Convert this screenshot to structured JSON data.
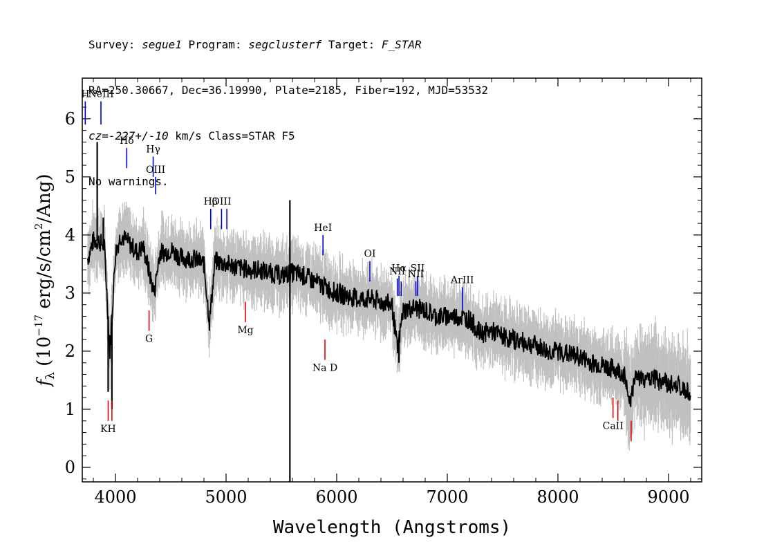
{
  "header": {
    "line1": {
      "survey_label": "Survey: ",
      "survey": "segue1",
      "program_label": " Program: ",
      "program": "segclusterf",
      "target_label": " Target: ",
      "target": "F_STAR"
    },
    "line2": "RA=250.30667, Dec=36.19990, Plate=2185, Fiber=192, MJD=53532",
    "line3": {
      "cz": "cz=-227+/-10",
      "rest": " km/s Class=STAR F5"
    },
    "line4": "No warnings."
  },
  "colors": {
    "flux": "#000000",
    "error_band": "#c0c0c0",
    "emission": "#0000cc",
    "absorption": "#dd0000"
  },
  "chart_data": {
    "type": "line",
    "xlabel": "Wavelength (Angstroms)",
    "ylabel_parts": {
      "f": "f",
      "sub": "λ",
      "pre": " (10",
      "exp1": "−17",
      "mid": " erg/s/cm",
      "exp2": "2",
      "post": "/Ang)"
    },
    "xlim": [
      3700,
      9300
    ],
    "ylim": [
      -0.25,
      6.7
    ],
    "x_ticks": [
      "4000",
      "5000",
      "6000",
      "7000",
      "8000",
      "9000"
    ],
    "x_tick_values": [
      4000,
      5000,
      6000,
      7000,
      8000,
      9000
    ],
    "y_ticks": [
      "0",
      "1",
      "2",
      "3",
      "4",
      "5",
      "6"
    ],
    "y_tick_values": [
      0,
      1,
      2,
      3,
      4,
      5,
      6
    ],
    "grid": false,
    "series": [
      {
        "role": "flux",
        "x": [
          3750,
          3800,
          3850,
          3900,
          3950,
          4000,
          4050,
          4100,
          4150,
          4200,
          4250,
          4300,
          4350,
          4400,
          4450,
          4500,
          4600,
          4700,
          4800,
          4850,
          4900,
          5000,
          5100,
          5200,
          5300,
          5400,
          5500,
          5600,
          5700,
          5800,
          5900,
          6000,
          6100,
          6200,
          6300,
          6400,
          6500,
          6550,
          6600,
          6700,
          6800,
          6900,
          7000,
          7100,
          7200,
          7300,
          7400,
          7500,
          7600,
          7700,
          7800,
          7900,
          8000,
          8100,
          8200,
          8300,
          8400,
          8500,
          8600,
          8650,
          8700,
          8800,
          8900,
          9000,
          9100,
          9200
        ],
        "y": [
          3.6,
          3.9,
          3.9,
          3.8,
          2.0,
          3.7,
          4.0,
          3.9,
          3.8,
          3.7,
          3.8,
          3.4,
          3.0,
          3.7,
          3.7,
          3.75,
          3.6,
          3.6,
          3.5,
          2.5,
          3.55,
          3.5,
          3.45,
          3.4,
          3.4,
          3.35,
          3.3,
          3.35,
          3.3,
          3.2,
          3.1,
          3.0,
          2.95,
          2.9,
          2.9,
          2.85,
          2.8,
          2.0,
          2.7,
          2.75,
          2.7,
          2.6,
          2.6,
          2.6,
          2.55,
          2.3,
          2.35,
          2.25,
          2.2,
          2.15,
          2.1,
          2.0,
          2.0,
          1.95,
          1.9,
          1.8,
          1.75,
          1.7,
          1.6,
          1.1,
          1.6,
          1.5,
          1.5,
          1.45,
          1.4,
          1.3
        ]
      }
    ],
    "spikes": [
      {
        "x": 3835,
        "y": 5.6
      },
      {
        "x": 3890,
        "y": 4.3
      },
      {
        "x": 3934,
        "y": 1.3
      },
      {
        "x": 3968,
        "y": 1.0
      },
      {
        "x": 5577,
        "y": 4.6
      },
      {
        "x": 5577,
        "y": -0.3
      },
      {
        "x": 6563,
        "y": 1.8
      }
    ],
    "line_markers": [
      {
        "label": "H",
        "x": 3727,
        "y1": 5.9,
        "y2": 6.3,
        "kind": "emission"
      },
      {
        "label": "NeIII",
        "x": 3869,
        "y1": 5.9,
        "y2": 6.3,
        "kind": "emission"
      },
      {
        "label": "Hδ",
        "x": 4102,
        "y1": 5.15,
        "y2": 5.5,
        "kind": "emission"
      },
      {
        "label": "Hγ",
        "x": 4341,
        "y1": 5.0,
        "y2": 5.35,
        "kind": "emission"
      },
      {
        "label": "OIII",
        "x": 4363,
        "y1": 4.7,
        "y2": 5.0,
        "kind": "emission"
      },
      {
        "label": "Hβ",
        "x": 4861,
        "y1": 4.1,
        "y2": 4.45,
        "kind": "emission"
      },
      {
        "label": "OIII",
        "x": 4959,
        "y1": 4.1,
        "y2": 4.45,
        "kind": "emission"
      },
      {
        "label": "",
        "x": 5007,
        "y1": 4.1,
        "y2": 4.45,
        "kind": "emission"
      },
      {
        "label": "HeI",
        "x": 5876,
        "y1": 3.65,
        "y2": 4.0,
        "kind": "emission"
      },
      {
        "label": "OI",
        "x": 6300,
        "y1": 3.2,
        "y2": 3.55,
        "kind": "emission"
      },
      {
        "label": "NII",
        "x": 6548,
        "y1": 2.95,
        "y2": 3.25,
        "kind": "emission"
      },
      {
        "label": "Hα",
        "x": 6563,
        "y1": 2.95,
        "y2": 3.3,
        "kind": "emission"
      },
      {
        "label": "",
        "x": 6583,
        "y1": 2.95,
        "y2": 3.2,
        "kind": "emission"
      },
      {
        "label": "NII",
        "x": 6716,
        "y1": 2.95,
        "y2": 3.2,
        "kind": "emission"
      },
      {
        "label": "SII",
        "x": 6731,
        "y1": 2.95,
        "y2": 3.3,
        "kind": "emission"
      },
      {
        "label": "ArIII",
        "x": 7136,
        "y1": 2.7,
        "y2": 3.1,
        "kind": "emission"
      },
      {
        "label": "KH",
        "x": 3934,
        "y1": 0.8,
        "y2": 1.15,
        "kind": "absorption"
      },
      {
        "label": "",
        "x": 3968,
        "y1": 0.8,
        "y2": 1.15,
        "kind": "absorption"
      },
      {
        "label": "G",
        "x": 4304,
        "y1": 2.35,
        "y2": 2.7,
        "kind": "absorption"
      },
      {
        "label": "Mg",
        "x": 5175,
        "y1": 2.5,
        "y2": 2.85,
        "kind": "absorption"
      },
      {
        "label": "Na D",
        "x": 5894,
        "y1": 1.85,
        "y2": 2.2,
        "kind": "absorption"
      },
      {
        "label": "CaII",
        "x": 8498,
        "y1": 0.85,
        "y2": 1.2,
        "kind": "absorption"
      },
      {
        "label": "",
        "x": 8542,
        "y1": 0.8,
        "y2": 1.15,
        "kind": "absorption"
      },
      {
        "label": "",
        "x": 8662,
        "y1": 0.45,
        "y2": 0.8,
        "kind": "absorption"
      }
    ]
  }
}
